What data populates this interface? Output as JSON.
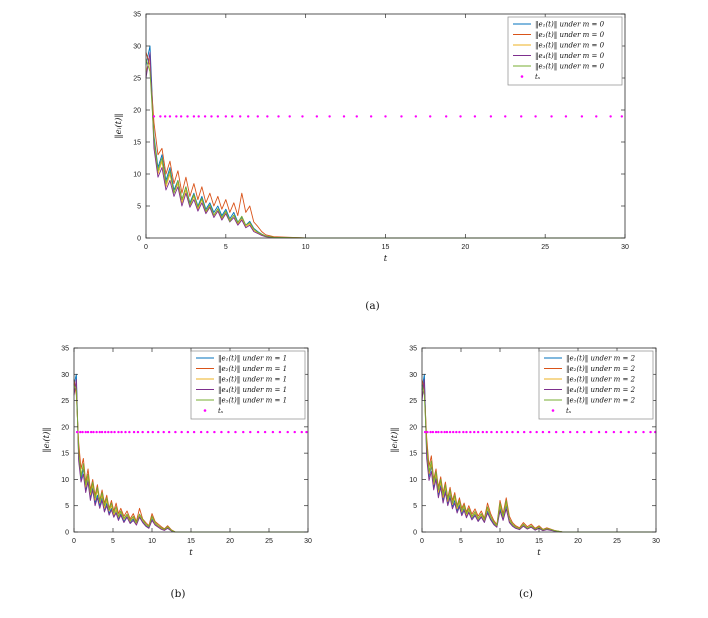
{
  "figure": {
    "background": "#ffffff",
    "accent_colors": {
      "series1": "#0072BD",
      "series2": "#D95319",
      "series3": "#EDB120",
      "series4": "#7E2F8E",
      "series5": "#77AC30",
      "ts_marker": "#FF00FF"
    }
  },
  "chart_data": [
    {
      "type": "line",
      "caption": "(a)",
      "xlabel": "t",
      "ylabel": "‖eᵢ(t)‖",
      "xlim": [
        0,
        30
      ],
      "ylim": [
        0,
        35
      ],
      "xticks": [
        0,
        5,
        10,
        15,
        20,
        25,
        30
      ],
      "yticks": [
        0,
        5,
        10,
        15,
        20,
        25,
        30,
        35
      ],
      "grid": false,
      "legend_position": "top-right",
      "x": [
        0,
        0.25,
        0.5,
        0.75,
        1.0,
        1.25,
        1.5,
        1.75,
        2.0,
        2.25,
        2.5,
        2.75,
        3.0,
        3.25,
        3.5,
        3.75,
        4.0,
        4.25,
        4.5,
        4.75,
        5.0,
        5.25,
        5.5,
        5.75,
        6.0,
        6.25,
        6.5,
        6.75,
        7.0,
        7.25,
        7.5,
        8,
        10,
        30
      ],
      "series": [
        {
          "name": "‖e₁(t)‖ under m = 0",
          "color": "#0072BD",
          "values": [
            27,
            30,
            16,
            11,
            13,
            9,
            11,
            7.5,
            9,
            6,
            8,
            5.5,
            7,
            5,
            6.5,
            4.5,
            5.5,
            4,
            5,
            3.5,
            4.5,
            3,
            4,
            2.5,
            3.2,
            2,
            2.6,
            1.5,
            1,
            0.6,
            0.3,
            0.1,
            0,
            0
          ]
        },
        {
          "name": "‖e₂(t)‖ under m = 0",
          "color": "#D95319",
          "values": [
            29,
            27,
            18,
            13,
            14,
            10,
            12,
            8.5,
            10.5,
            7,
            9.5,
            6.5,
            8.5,
            6,
            8,
            5.5,
            7,
            5,
            6.5,
            4.5,
            6,
            4,
            5.5,
            3.5,
            7,
            4,
            5,
            2.5,
            1.8,
            1,
            0.5,
            0.2,
            0,
            0
          ]
        },
        {
          "name": "‖e₃(t)‖ under m = 0",
          "color": "#EDB120",
          "values": [
            26,
            28,
            15,
            10,
            12,
            8,
            10,
            7,
            8.5,
            5.5,
            7.5,
            5,
            6.5,
            4.5,
            6,
            4,
            5,
            3.5,
            4.5,
            3,
            4,
            2.8,
            3.5,
            2.2,
            3,
            1.8,
            2.2,
            1.2,
            0.8,
            0.5,
            0.2,
            0.1,
            0,
            0
          ]
        },
        {
          "name": "‖e₄(t)‖ under m = 0",
          "color": "#7E2F8E",
          "values": [
            25,
            29,
            14,
            9.5,
            11,
            7.5,
            9,
            6.5,
            8,
            5,
            7,
            4.8,
            6,
            4.2,
            5.5,
            3.8,
            4.8,
            3.2,
            4.2,
            2.8,
            3.8,
            2.5,
            3.2,
            2,
            2.8,
            1.6,
            2,
            1,
            0.7,
            0.4,
            0.2,
            0.05,
            0,
            0
          ]
        },
        {
          "name": "‖e₅(t)‖ under m = 0",
          "color": "#77AC30",
          "values": [
            28,
            26,
            15.5,
            10.5,
            12.5,
            8.5,
            10.5,
            7,
            9,
            6,
            8,
            5.2,
            6.8,
            4.8,
            6.2,
            4.2,
            5.2,
            3.6,
            4.6,
            3.2,
            4.2,
            2.6,
            3.6,
            2.4,
            3.4,
            2,
            2.4,
            1.4,
            0.9,
            0.6,
            0.3,
            0.1,
            0,
            0
          ]
        }
      ],
      "scatter": {
        "name": "tₛ",
        "color": "#FF00FF",
        "y": 19,
        "x": [
          0.5,
          0.9,
          1.2,
          1.5,
          1.9,
          2.2,
          2.6,
          3.0,
          3.3,
          3.7,
          4.1,
          4.5,
          5.0,
          5.4,
          5.9,
          6.4,
          7.0,
          7.6,
          8.3,
          9.0,
          9.8,
          10.7,
          11.5,
          12.4,
          13.2,
          14.1,
          15.0,
          16.0,
          16.9,
          17.8,
          18.8,
          19.7,
          20.6,
          21.6,
          22.5,
          23.5,
          24.4,
          25.4,
          26.3,
          27.3,
          28.2,
          29.1,
          29.8
        ]
      }
    },
    {
      "type": "line",
      "caption": "(b)",
      "xlabel": "t",
      "ylabel": "‖eᵢ(t)‖",
      "xlim": [
        0,
        30
      ],
      "ylim": [
        0,
        35
      ],
      "xticks": [
        0,
        5,
        10,
        15,
        20,
        25,
        30
      ],
      "yticks": [
        0,
        5,
        10,
        15,
        20,
        25,
        30,
        35
      ],
      "grid": false,
      "legend_position": "top-right",
      "x": [
        0,
        0.3,
        0.6,
        0.9,
        1.2,
        1.5,
        1.8,
        2.1,
        2.4,
        2.7,
        3.0,
        3.3,
        3.6,
        3.9,
        4.2,
        4.5,
        4.8,
        5.1,
        5.4,
        5.7,
        6.0,
        6.4,
        6.8,
        7.2,
        7.6,
        8.0,
        8.4,
        8.8,
        9.2,
        9.6,
        10.0,
        10.4,
        10.8,
        11.2,
        11.6,
        12.0,
        12.5,
        13.0,
        30
      ],
      "series": [
        {
          "name": "‖e₁(t)‖ under m = 1",
          "color": "#0072BD",
          "values": [
            28,
            30,
            14,
            10,
            12,
            8,
            10,
            6.5,
            8.5,
            5.5,
            7,
            5,
            6.5,
            4,
            5.5,
            3.5,
            4.5,
            3,
            4,
            2.5,
            3.5,
            2,
            3,
            1.8,
            2.5,
            1.5,
            3,
            2,
            1.2,
            0.8,
            2.5,
            1.5,
            1,
            0.6,
            0.4,
            0.8,
            0.2,
            0,
            0
          ]
        },
        {
          "name": "‖e₂(t)‖ under m = 1",
          "color": "#D95319",
          "values": [
            29,
            26,
            17,
            12,
            14,
            9.5,
            12,
            8,
            10,
            7,
            9,
            6,
            8,
            5.5,
            7,
            4.5,
            6,
            4,
            5.5,
            3.5,
            4.5,
            3,
            4,
            2.5,
            3.5,
            2,
            4.5,
            2.5,
            1.8,
            1.2,
            3.5,
            2,
            1.5,
            1,
            0.6,
            1.2,
            0.4,
            0,
            0
          ]
        },
        {
          "name": "‖e₃(t)‖ under m = 1",
          "color": "#EDB120",
          "values": [
            27,
            28,
            15,
            11,
            12.5,
            8.5,
            10.5,
            7,
            9,
            6,
            8,
            5.5,
            7,
            4.5,
            6,
            4,
            5,
            3.2,
            4.2,
            2.8,
            3.8,
            2.4,
            3.2,
            2,
            2.8,
            1.6,
            3.2,
            2.2,
            1.4,
            1,
            2.8,
            1.6,
            1.1,
            0.7,
            0.4,
            0.9,
            0.3,
            0,
            0
          ]
        },
        {
          "name": "‖e₄(t)‖ under m = 1",
          "color": "#7E2F8E",
          "values": [
            26,
            29,
            13.5,
            9.5,
            11,
            7.5,
            9.5,
            6,
            8,
            5,
            6.5,
            4.5,
            6,
            3.8,
            5,
            3.2,
            4.2,
            2.8,
            3.6,
            2.2,
            3.2,
            1.8,
            2.8,
            1.6,
            2.2,
            1.3,
            2.8,
            1.8,
            1.1,
            0.7,
            2.2,
            1.3,
            0.9,
            0.5,
            0.3,
            0.7,
            0.2,
            0,
            0
          ]
        },
        {
          "name": "‖e₅(t)‖ under m = 1",
          "color": "#77AC30",
          "values": [
            28,
            27,
            15.5,
            10.5,
            13,
            9,
            11,
            7.5,
            9.5,
            6.5,
            8.5,
            5.8,
            7.5,
            5,
            6.5,
            4.2,
            5.5,
            3.6,
            4.8,
            3,
            4,
            2.6,
            3.4,
            2.2,
            3,
            1.8,
            3.4,
            2.4,
            1.5,
            1,
            3,
            1.8,
            1.2,
            0.8,
            0.5,
            1,
            0.3,
            0,
            0
          ]
        }
      ],
      "scatter": {
        "name": "tₛ",
        "color": "#FF00FF",
        "y": 19,
        "x": [
          0.4,
          0.8,
          1.1,
          1.5,
          1.8,
          2.2,
          2.5,
          2.9,
          3.3,
          3.6,
          4.0,
          4.4,
          4.8,
          5.2,
          5.7,
          6.1,
          6.6,
          7.1,
          7.7,
          8.2,
          8.8,
          9.5,
          10.1,
          10.8,
          11.5,
          12.2,
          13.0,
          13.8,
          14.6,
          15.4,
          16.3,
          17.1,
          18.0,
          18.9,
          19.8,
          20.7,
          21.7,
          22.6,
          23.6,
          24.5,
          25.5,
          26.4,
          27.4,
          28.3,
          29.2,
          29.8
        ]
      }
    },
    {
      "type": "line",
      "caption": "(c)",
      "xlabel": "t",
      "ylabel": "‖eᵢ(t)‖",
      "xlim": [
        0,
        30
      ],
      "ylim": [
        0,
        35
      ],
      "xticks": [
        0,
        5,
        10,
        15,
        20,
        25,
        30
      ],
      "yticks": [
        0,
        5,
        10,
        15,
        20,
        25,
        30,
        35
      ],
      "grid": false,
      "legend_position": "top-right",
      "x": [
        0,
        0.3,
        0.6,
        0.9,
        1.2,
        1.5,
        1.8,
        2.1,
        2.4,
        2.7,
        3.0,
        3.3,
        3.6,
        3.9,
        4.2,
        4.5,
        4.8,
        5.1,
        5.4,
        5.7,
        6.0,
        6.4,
        6.8,
        7.2,
        7.6,
        8.0,
        8.4,
        8.8,
        9.2,
        9.6,
        10.0,
        10.4,
        10.8,
        11.2,
        11.6,
        12.0,
        12.5,
        13.0,
        13.5,
        14.0,
        14.5,
        15.0,
        15.5,
        16.0,
        17.0,
        18.0,
        30
      ],
      "series": [
        {
          "name": "‖e₁(t)‖ under m = 2",
          "color": "#0072BD",
          "values": [
            27,
            30,
            15,
            10.5,
            12.5,
            8.5,
            10.5,
            7,
            9,
            6,
            8,
            5.5,
            7,
            4.8,
            6,
            4,
            5.2,
            3.5,
            4.5,
            3,
            4,
            2.6,
            3.4,
            2.2,
            3,
            2,
            4,
            2.5,
            1.6,
            1,
            4.5,
            2.5,
            5,
            2,
            1.2,
            0.8,
            0.5,
            1.2,
            0.6,
            1,
            0.4,
            0.8,
            0.3,
            0.5,
            0.2,
            0,
            0
          ]
        },
        {
          "name": "‖e₂(t)‖ under m = 2",
          "color": "#D95319",
          "values": [
            29,
            27,
            18,
            12.5,
            14.5,
            10,
            12,
            8.5,
            10.5,
            7.5,
            9.5,
            6.5,
            8.5,
            6,
            7.5,
            5,
            6.5,
            4.5,
            5.5,
            3.8,
            5,
            3.4,
            4.4,
            3,
            4,
            2.6,
            5.5,
            3.5,
            2.2,
            1.4,
            6,
            3.5,
            6.5,
            3,
            1.8,
            1.2,
            0.8,
            1.8,
            1,
            1.5,
            0.7,
            1.2,
            0.5,
            0.8,
            0.3,
            0,
            0
          ]
        },
        {
          "name": "‖e₃(t)‖ under m = 2",
          "color": "#EDB120",
          "values": [
            26,
            28,
            16,
            11,
            13,
            9,
            11,
            7.5,
            9.5,
            6.5,
            8.5,
            5.8,
            7.5,
            5.2,
            6.5,
            4.4,
            5.6,
            3.8,
            4.8,
            3.2,
            4.2,
            2.8,
            3.6,
            2.4,
            3.2,
            2.2,
            4.4,
            2.8,
            1.8,
            1.1,
            5,
            2.8,
            5.5,
            2.2,
            1.4,
            0.9,
            0.6,
            1.4,
            0.7,
            1.1,
            0.5,
            0.9,
            0.35,
            0.6,
            0.25,
            0,
            0
          ]
        },
        {
          "name": "‖e₄(t)‖ under m = 2",
          "color": "#7E2F8E",
          "values": [
            25,
            29,
            14,
            9.8,
            11.5,
            8,
            10,
            6.5,
            8.5,
            5.5,
            7.5,
            5,
            6.5,
            4.4,
            5.5,
            3.6,
            4.8,
            3.1,
            4.1,
            2.7,
            3.7,
            2.3,
            3.1,
            2,
            2.8,
            1.8,
            3.6,
            2.3,
            1.4,
            0.9,
            4,
            2.2,
            4.4,
            1.8,
            1.1,
            0.7,
            0.45,
            1.1,
            0.55,
            0.9,
            0.35,
            0.7,
            0.25,
            0.45,
            0.18,
            0,
            0
          ]
        },
        {
          "name": "‖e₅(t)‖ under m = 2",
          "color": "#77AC30",
          "values": [
            28,
            26,
            16.5,
            11.5,
            13.5,
            9.5,
            11.5,
            8,
            10,
            7,
            9,
            6.2,
            8,
            5.5,
            7,
            4.8,
            6,
            4.1,
            5.1,
            3.5,
            4.5,
            3,
            3.9,
            2.6,
            3.5,
            2.4,
            4.8,
            3,
            1.9,
            1.2,
            5.5,
            3,
            6,
            2.5,
            1.5,
            1,
            0.65,
            1.5,
            0.75,
            1.2,
            0.55,
            1,
            0.4,
            0.65,
            0.28,
            0,
            0
          ]
        }
      ],
      "scatter": {
        "name": "tₛ",
        "color": "#FF00FF",
        "y": 19,
        "x": [
          0.4,
          0.7,
          1.1,
          1.4,
          1.8,
          2.1,
          2.5,
          2.9,
          3.2,
          3.6,
          4.0,
          4.4,
          4.8,
          5.3,
          5.7,
          6.2,
          6.7,
          7.2,
          7.8,
          8.3,
          8.9,
          9.6,
          10.2,
          10.9,
          11.6,
          12.3,
          13.1,
          13.9,
          14.7,
          15.5,
          16.3,
          17.2,
          18.1,
          19.0,
          19.9,
          20.8,
          21.7,
          22.7,
          23.6,
          24.6,
          25.5,
          26.5,
          27.4,
          28.4,
          29.3,
          29.9
        ]
      }
    }
  ]
}
